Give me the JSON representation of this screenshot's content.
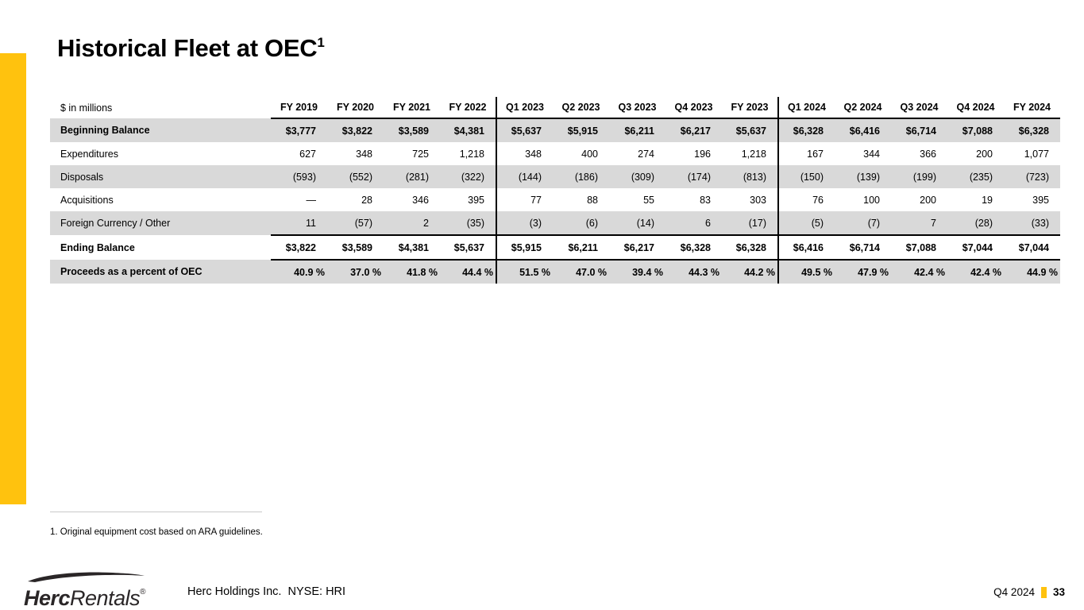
{
  "slide": {
    "title": "Historical Fleet at OEC",
    "title_superscript": "1",
    "accent_color": "#FFC20E"
  },
  "table": {
    "unit_label": "$ in millions",
    "columns": [
      "FY 2019",
      "FY 2020",
      "FY 2021",
      "FY 2022",
      "Q1 2023",
      "Q2 2023",
      "Q3 2023",
      "Q4 2023",
      "FY 2023",
      "Q1 2024",
      "Q2 2024",
      "Q3 2024",
      "Q4 2024",
      "FY 2024"
    ],
    "divider_before_column_indexes": [
      4,
      9
    ],
    "rows": [
      {
        "label": "Beginning Balance",
        "bold": true,
        "shaded": true,
        "percent": false,
        "rule_below": false,
        "values": [
          "$3,777",
          "$3,822",
          "$3,589",
          "$4,381",
          "$5,637",
          "$5,915",
          "$6,211",
          "$6,217",
          "$5,637",
          "$6,328",
          "$6,416",
          "$6,714",
          "$7,088",
          "$6,328"
        ]
      },
      {
        "label": "Expenditures",
        "bold": false,
        "shaded": false,
        "percent": false,
        "rule_below": false,
        "values": [
          "627",
          "348",
          "725",
          "1,218",
          "348",
          "400",
          "274",
          "196",
          "1,218",
          "167",
          "344",
          "366",
          "200",
          "1,077"
        ]
      },
      {
        "label": "Disposals",
        "bold": false,
        "shaded": true,
        "percent": false,
        "rule_below": false,
        "values": [
          "(593)",
          "(552)",
          "(281)",
          "(322)",
          "(144)",
          "(186)",
          "(309)",
          "(174)",
          "(813)",
          "(150)",
          "(139)",
          "(199)",
          "(235)",
          "(723)"
        ]
      },
      {
        "label": "Acquisitions",
        "bold": false,
        "shaded": false,
        "percent": false,
        "rule_below": false,
        "values": [
          "—",
          "28",
          "346",
          "395",
          "77",
          "88",
          "55",
          "83",
          "303",
          "76",
          "100",
          "200",
          "19",
          "395"
        ]
      },
      {
        "label": "Foreign Currency / Other",
        "bold": false,
        "shaded": true,
        "percent": false,
        "rule_below": true,
        "values": [
          "11",
          "(57)",
          "2",
          "(35)",
          "(3)",
          "(6)",
          "(14)",
          "6",
          "(17)",
          "(5)",
          "(7)",
          "7",
          "(28)",
          "(33)"
        ]
      },
      {
        "label": "Ending Balance",
        "bold": true,
        "shaded": false,
        "percent": false,
        "rule_below": true,
        "values": [
          "$3,822",
          "$3,589",
          "$4,381",
          "$5,637",
          "$5,915",
          "$6,211",
          "$6,217",
          "$6,328",
          "$6,328",
          "$6,416",
          "$6,714",
          "$7,088",
          "$7,044",
          "$7,044"
        ]
      },
      {
        "label": "Proceeds as a percent of OEC",
        "bold": true,
        "shaded": true,
        "percent": true,
        "rule_below": false,
        "values": [
          "40.9 %",
          "37.0 %",
          "41.8 %",
          "44.4 %",
          "51.5 %",
          "47.0 %",
          "39.4 %",
          "44.3 %",
          "44.2 %",
          "49.5 %",
          "47.9 %",
          "42.4 %",
          "42.4 %",
          "44.9 %"
        ]
      }
    ]
  },
  "footnote": {
    "text": "1. Original equipment cost based on ARA guidelines."
  },
  "footer": {
    "logo_bold": "Herc",
    "logo_regular": "Rentals",
    "logo_registered": "®",
    "company": "Herc Holdings Inc.  NYSE: HRI",
    "period": "Q4 2024",
    "page_number": "33"
  }
}
